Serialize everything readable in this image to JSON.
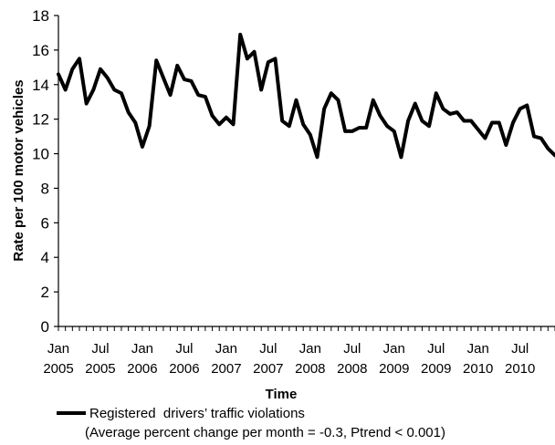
{
  "chart_data": {
    "type": "line",
    "ylabel": "Rate per 100 motor vehicles",
    "xlabel": "Time",
    "ylim": [
      0,
      18
    ],
    "y_ticks": [
      0,
      2,
      4,
      6,
      8,
      10,
      12,
      14,
      16,
      18
    ],
    "grid": false,
    "legend_position": "bottom",
    "x_tick_labels": [
      [
        "Jan",
        "2005"
      ],
      [
        "Jul",
        "2005"
      ],
      [
        "Jan",
        "2006"
      ],
      [
        "Jul",
        "2006"
      ],
      [
        "Jan",
        "2007"
      ],
      [
        "Jul",
        "2007"
      ],
      [
        "Jan",
        "2008"
      ],
      [
        "Jul",
        "2008"
      ],
      [
        "Jan",
        "2009"
      ],
      [
        "Jul",
        "2009"
      ],
      [
        "Jan",
        "2010"
      ],
      [
        "Jul",
        "2010"
      ]
    ],
    "x_start": "Jan 2005",
    "x_end": "Dec 2010",
    "series": [
      {
        "name": "Registered  drivers’ traffic violations",
        "note": "(Average percent change per month = -0.3, Ptrend < 0.001)",
        "color": "#000000",
        "values": [
          14.6,
          13.7,
          14.9,
          15.5,
          12.9,
          13.7,
          14.9,
          14.4,
          13.7,
          13.5,
          12.4,
          11.8,
          10.4,
          11.6,
          15.4,
          14.4,
          13.4,
          15.1,
          14.3,
          14.2,
          13.4,
          13.3,
          12.2,
          11.7,
          12.1,
          11.7,
          16.9,
          15.5,
          15.9,
          13.7,
          15.3,
          15.5,
          11.9,
          11.6,
          13.1,
          11.7,
          11.1,
          9.8,
          12.6,
          13.5,
          13.1,
          11.3,
          11.3,
          11.5,
          11.5,
          13.1,
          12.2,
          11.6,
          11.3,
          9.8,
          11.9,
          12.9,
          11.9,
          11.6,
          13.5,
          12.6,
          12.3,
          12.4,
          11.9,
          11.9,
          11.4,
          10.9,
          11.8,
          11.8,
          10.5,
          11.8,
          12.6,
          12.8,
          11.0,
          10.9,
          10.3,
          9.9
        ]
      }
    ]
  }
}
